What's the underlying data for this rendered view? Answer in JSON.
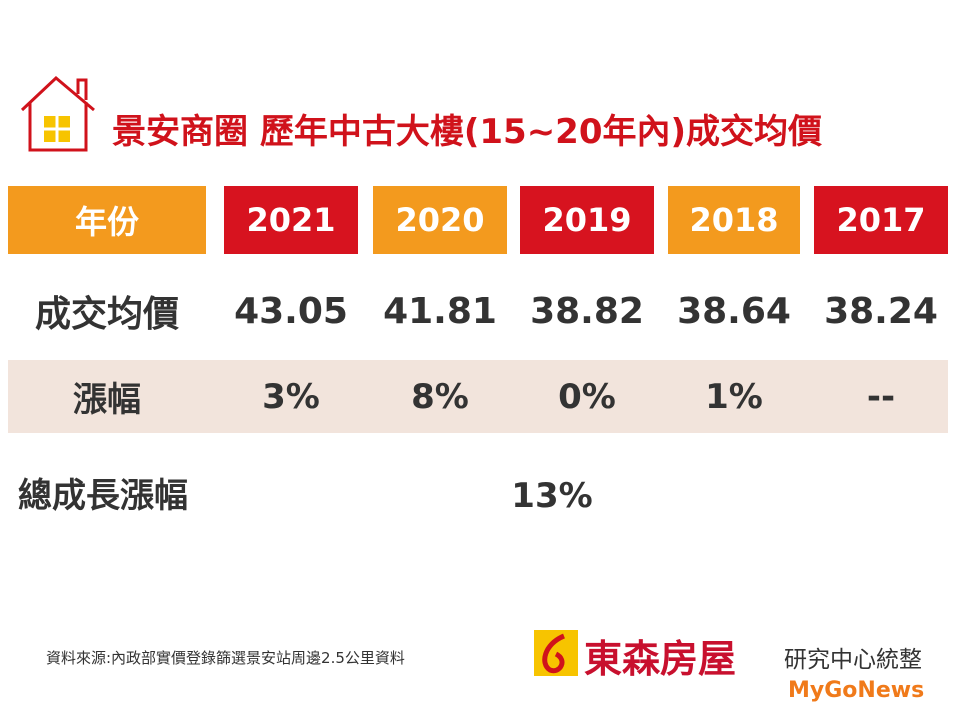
{
  "title": "景安商圈 歷年中古大樓(15~20年內)成交均價",
  "table": {
    "header": [
      "年份",
      "2021",
      "2020",
      "2019",
      "2018",
      "2017"
    ],
    "rows": [
      [
        "成交均價",
        "43.05",
        "41.81",
        "38.82",
        "38.64",
        "38.24"
      ],
      [
        "漲幅",
        "3%",
        "8%",
        "0%",
        "1%",
        "--"
      ]
    ],
    "total": {
      "label": "總成長漲幅",
      "value": "13%"
    }
  },
  "footer": {
    "source": "資料來源:內政部實價登錄篩選景安站周邊2.5公里資料",
    "brand": "東森房屋",
    "credit": "研究中心統整",
    "watermark": "MyGoNews"
  }
}
